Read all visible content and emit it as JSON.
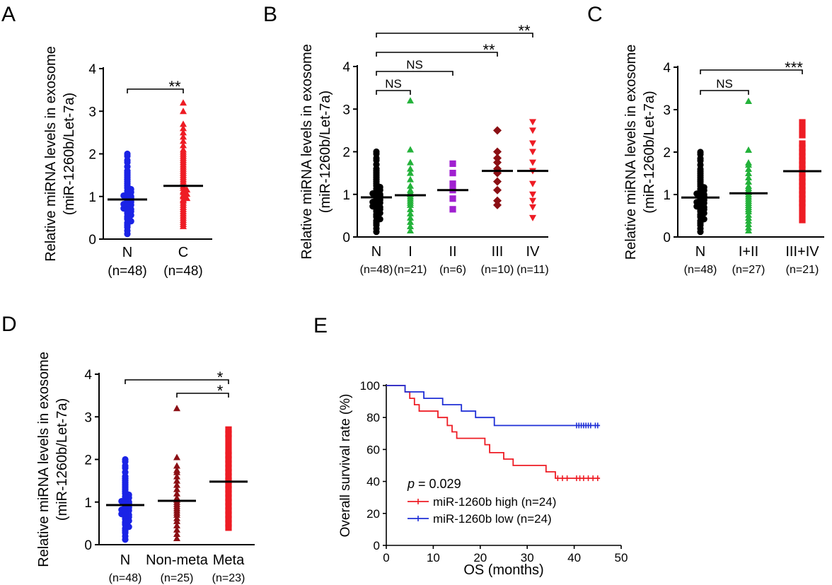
{
  "figure": {
    "panel_letters": [
      "A",
      "B",
      "C",
      "D",
      "E"
    ],
    "y_axis_label_line1": "Relative miRNA levels in exosome",
    "y_axis_label_line2": "(miR-1260b/Let-7a)"
  },
  "colors": {
    "blue": "#1a23e6",
    "red": "#ee1c24",
    "green": "#23b23a",
    "purple": "#a020d0",
    "darkred": "#8b0f14",
    "black": "#000000",
    "km_red": "#ee1c24",
    "km_blue": "#1f2fd6"
  },
  "chart_data": [
    {
      "panel": "A",
      "type": "scatter",
      "ylim": [
        0,
        4
      ],
      "yticks": [
        0,
        1,
        2,
        3,
        4
      ],
      "groups": [
        {
          "label": "N",
          "n_label": "(n=48)",
          "color": "blue",
          "marker": "circle",
          "mean": 0.93,
          "values": [
            0.12,
            0.2,
            0.28,
            0.33,
            0.38,
            0.42,
            0.47,
            0.5,
            0.53,
            0.56,
            0.6,
            0.63,
            0.65,
            0.68,
            0.7,
            0.72,
            0.75,
            0.78,
            0.8,
            0.82,
            0.85,
            0.87,
            0.9,
            0.92,
            0.94,
            0.96,
            0.98,
            1.0,
            1.02,
            1.05,
            1.08,
            1.1,
            1.13,
            1.17,
            1.2,
            1.25,
            1.3,
            1.35,
            1.4,
            1.45,
            1.5,
            1.55,
            1.6,
            1.7,
            1.8,
            1.85,
            1.95,
            2.0
          ]
        },
        {
          "label": "C",
          "n_label": "(n=48)",
          "color": "red",
          "marker": "triangle",
          "mean": 1.25,
          "values": [
            0.3,
            0.35,
            0.4,
            0.45,
            0.5,
            0.55,
            0.6,
            0.65,
            0.7,
            0.75,
            0.8,
            0.85,
            0.9,
            0.93,
            0.96,
            1.0,
            1.03,
            1.06,
            1.1,
            1.13,
            1.16,
            1.2,
            1.25,
            1.3,
            1.35,
            1.4,
            1.45,
            1.5,
            1.55,
            1.6,
            1.65,
            1.7,
            1.75,
            1.8,
            1.85,
            1.9,
            1.95,
            2.0,
            2.05,
            2.1,
            2.2,
            2.3,
            2.4,
            2.5,
            2.6,
            2.7,
            3.0,
            3.2
          ]
        }
      ],
      "comparisons": [
        {
          "from": 0,
          "to": 1,
          "label": "**"
        }
      ]
    },
    {
      "panel": "B",
      "type": "scatter",
      "ylim": [
        0,
        4
      ],
      "yticks": [
        0,
        1,
        2,
        3,
        4
      ],
      "groups": [
        {
          "label": "N",
          "n_label": "(n=48)",
          "color": "black",
          "marker": "circle",
          "mean": 0.93,
          "values": [
            0.12,
            0.2,
            0.28,
            0.33,
            0.38,
            0.42,
            0.47,
            0.5,
            0.53,
            0.56,
            0.6,
            0.63,
            0.65,
            0.68,
            0.7,
            0.72,
            0.75,
            0.78,
            0.8,
            0.82,
            0.85,
            0.87,
            0.9,
            0.92,
            0.94,
            0.96,
            0.98,
            1.0,
            1.02,
            1.05,
            1.08,
            1.1,
            1.13,
            1.17,
            1.2,
            1.25,
            1.3,
            1.35,
            1.4,
            1.45,
            1.5,
            1.55,
            1.6,
            1.7,
            1.8,
            1.85,
            1.95,
            2.0
          ]
        },
        {
          "label": "I",
          "n_label": "(n=21)",
          "color": "green",
          "marker": "triangle",
          "mean": 0.98,
          "values": [
            0.15,
            0.25,
            0.35,
            0.45,
            0.55,
            0.65,
            0.75,
            0.8,
            0.85,
            0.9,
            0.95,
            1.0,
            1.05,
            1.1,
            1.2,
            1.35,
            1.5,
            1.6,
            1.75,
            2.05,
            3.2
          ]
        },
        {
          "label": "II",
          "n_label": "(n=6)",
          "color": "purple",
          "marker": "square",
          "mean": 1.1,
          "values": [
            0.65,
            0.9,
            1.1,
            1.25,
            1.5,
            1.72
          ]
        },
        {
          "label": "III",
          "n_label": "(n=10)",
          "color": "darkred",
          "marker": "diamond",
          "mean": 1.55,
          "values": [
            0.75,
            0.85,
            1.1,
            1.3,
            1.5,
            1.6,
            1.75,
            1.85,
            2.0,
            2.5
          ]
        },
        {
          "label": "IV",
          "n_label": "(n=11)",
          "color": "red",
          "marker": "invtriangle",
          "mean": 1.55,
          "values": [
            0.45,
            0.7,
            0.85,
            1.0,
            1.25,
            1.55,
            1.75,
            2.0,
            2.2,
            2.5,
            2.7
          ]
        }
      ],
      "comparisons": [
        {
          "from": 0,
          "to": 1,
          "label": "NS"
        },
        {
          "from": 0,
          "to": 2,
          "label": "NS"
        },
        {
          "from": 0,
          "to": 3,
          "label": "**"
        },
        {
          "from": 0,
          "to": 4,
          "label": "**"
        }
      ]
    },
    {
      "panel": "C",
      "type": "scatter",
      "ylim": [
        0,
        4
      ],
      "yticks": [
        0,
        1,
        2,
        3,
        4
      ],
      "groups": [
        {
          "label": "N",
          "n_label": "(n=48)",
          "color": "black",
          "marker": "circle",
          "mean": 0.93,
          "values": [
            0.12,
            0.2,
            0.28,
            0.33,
            0.38,
            0.42,
            0.47,
            0.5,
            0.53,
            0.56,
            0.6,
            0.63,
            0.65,
            0.68,
            0.7,
            0.72,
            0.75,
            0.78,
            0.8,
            0.82,
            0.85,
            0.87,
            0.9,
            0.92,
            0.94,
            0.96,
            0.98,
            1.0,
            1.02,
            1.05,
            1.08,
            1.1,
            1.13,
            1.17,
            1.2,
            1.25,
            1.3,
            1.35,
            1.4,
            1.45,
            1.5,
            1.55,
            1.6,
            1.7,
            1.8,
            1.85,
            1.95,
            2.0
          ]
        },
        {
          "label": "I+II",
          "n_label": "(n=27)",
          "color": "green",
          "marker": "triangle",
          "mean": 1.03,
          "values": [
            0.15,
            0.22,
            0.3,
            0.38,
            0.45,
            0.52,
            0.6,
            0.65,
            0.7,
            0.75,
            0.8,
            0.85,
            0.9,
            0.95,
            1.0,
            1.05,
            1.1,
            1.15,
            1.2,
            1.3,
            1.4,
            1.5,
            1.6,
            1.7,
            1.75,
            2.05,
            3.2
          ]
        },
        {
          "label": "III+IV",
          "n_label": "(n=21)",
          "color": "red",
          "marker": "square",
          "mean": 1.55,
          "values": [
            0.4,
            0.55,
            0.7,
            0.8,
            0.9,
            1.0,
            1.1,
            1.2,
            1.3,
            1.4,
            1.5,
            1.6,
            1.7,
            1.8,
            1.9,
            2.0,
            2.1,
            2.2,
            2.4,
            2.55,
            2.7
          ]
        }
      ],
      "comparisons": [
        {
          "from": 0,
          "to": 1,
          "label": "NS"
        },
        {
          "from": 0,
          "to": 2,
          "label": "***"
        }
      ]
    },
    {
      "panel": "D",
      "type": "scatter",
      "ylim": [
        0,
        4
      ],
      "yticks": [
        0,
        1,
        2,
        3,
        4
      ],
      "groups": [
        {
          "label": "N",
          "n_label": "(n=48)",
          "color": "blue",
          "marker": "circle",
          "mean": 0.93,
          "values": [
            0.12,
            0.2,
            0.28,
            0.33,
            0.38,
            0.42,
            0.47,
            0.5,
            0.53,
            0.56,
            0.6,
            0.63,
            0.65,
            0.68,
            0.7,
            0.72,
            0.75,
            0.78,
            0.8,
            0.82,
            0.85,
            0.87,
            0.9,
            0.92,
            0.94,
            0.96,
            0.98,
            1.0,
            1.02,
            1.05,
            1.08,
            1.1,
            1.13,
            1.17,
            1.2,
            1.25,
            1.3,
            1.35,
            1.4,
            1.45,
            1.5,
            1.55,
            1.6,
            1.7,
            1.8,
            1.85,
            1.95,
            2.0
          ]
        },
        {
          "label": "Non-meta",
          "n_label": "(n=25)",
          "color": "darkred",
          "marker": "triangle",
          "mean": 1.03,
          "values": [
            0.15,
            0.25,
            0.35,
            0.45,
            0.55,
            0.62,
            0.7,
            0.75,
            0.8,
            0.85,
            0.9,
            0.95,
            1.0,
            1.05,
            1.1,
            1.2,
            1.3,
            1.4,
            1.5,
            1.6,
            1.7,
            1.75,
            1.85,
            2.05,
            3.2
          ]
        },
        {
          "label": "Meta",
          "n_label": "(n=23)",
          "color": "red",
          "marker": "square",
          "mean": 1.48,
          "values": [
            0.4,
            0.5,
            0.6,
            0.7,
            0.8,
            0.9,
            1.0,
            1.1,
            1.2,
            1.3,
            1.4,
            1.5,
            1.6,
            1.7,
            1.8,
            1.9,
            2.0,
            2.1,
            2.2,
            2.35,
            2.5,
            2.6,
            2.7
          ]
        }
      ],
      "comparisons": [
        {
          "from": 0,
          "to": 2,
          "label": "*"
        },
        {
          "from": 1,
          "to": 2,
          "label": "*"
        }
      ]
    },
    {
      "panel": "E",
      "type": "line",
      "title": "",
      "xlabel": "OS (months)",
      "ylabel": "Overall survival rate (%)",
      "xlim": [
        0,
        50
      ],
      "ylim": [
        0,
        100
      ],
      "xticks": [
        0,
        10,
        20,
        30,
        40,
        50
      ],
      "yticks": [
        0,
        20,
        40,
        60,
        80,
        100
      ],
      "annotation": {
        "p_symbol": "p",
        "p_text": " = 0.029"
      },
      "series": [
        {
          "name": "miR-1260b high (n=24)",
          "color": "km_red",
          "steps": [
            [
              0,
              100
            ],
            [
              4,
              100
            ],
            [
              4,
              96
            ],
            [
              5,
              96
            ],
            [
              5,
              92
            ],
            [
              6,
              92
            ],
            [
              6,
              88
            ],
            [
              7,
              88
            ],
            [
              7,
              84
            ],
            [
              11,
              84
            ],
            [
              11,
              80
            ],
            [
              13,
              80
            ],
            [
              13,
              75
            ],
            [
              14,
              75
            ],
            [
              14,
              71
            ],
            [
              15,
              71
            ],
            [
              15,
              67
            ],
            [
              21,
              67
            ],
            [
              21,
              63
            ],
            [
              22,
              63
            ],
            [
              22,
              58
            ],
            [
              25,
              58
            ],
            [
              25,
              54
            ],
            [
              27,
              54
            ],
            [
              27,
              50
            ],
            [
              34,
              50
            ],
            [
              34,
              46
            ],
            [
              36,
              46
            ],
            [
              36,
              42
            ],
            [
              45.5,
              42
            ]
          ],
          "censor_x": [
            36.5,
            37.5,
            38.5,
            40.5,
            41.2,
            42,
            43,
            44,
            45
          ]
        },
        {
          "name": "miR-1260b low (n=24)",
          "color": "km_blue",
          "steps": [
            [
              0,
              100
            ],
            [
              4,
              100
            ],
            [
              4,
              96
            ],
            [
              8,
              96
            ],
            [
              8,
              92
            ],
            [
              12,
              92
            ],
            [
              12,
              88
            ],
            [
              16,
              88
            ],
            [
              16,
              84
            ],
            [
              19,
              84
            ],
            [
              19,
              80
            ],
            [
              23,
              80
            ],
            [
              23,
              75
            ],
            [
              45.5,
              75
            ]
          ],
          "censor_x": [
            40.5,
            41,
            41.5,
            42,
            42.5,
            43,
            43.5,
            44.5,
            45
          ]
        }
      ]
    }
  ]
}
